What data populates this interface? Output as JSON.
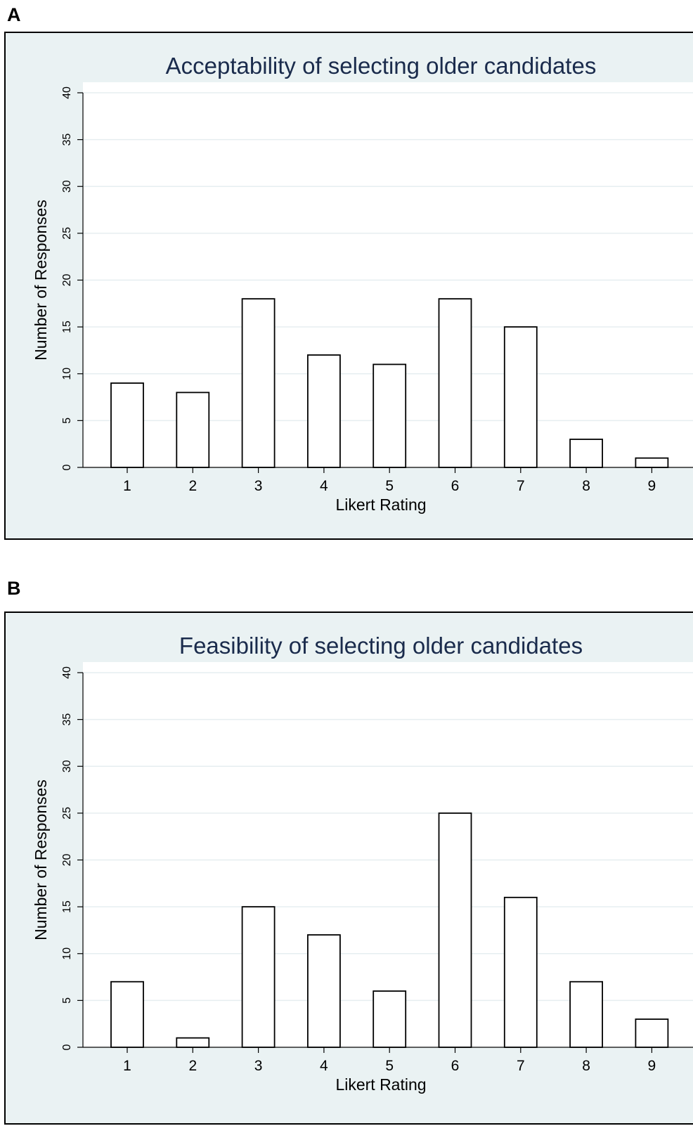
{
  "panels": [
    {
      "letter": "A"
    },
    {
      "letter": "B"
    }
  ],
  "chart_data": [
    {
      "type": "bar",
      "title": "Acceptability of selecting older candidates",
      "xlabel": "Likert Rating",
      "ylabel": "Number of Responses",
      "categories": [
        "1",
        "2",
        "3",
        "4",
        "5",
        "6",
        "7",
        "8",
        "9"
      ],
      "values": [
        9,
        8,
        18,
        12,
        11,
        18,
        15,
        3,
        1
      ],
      "ylim": [
        0,
        40
      ],
      "yticks": [
        "0",
        "5",
        "10",
        "15",
        "20",
        "25",
        "30",
        "35",
        "40"
      ],
      "grid": true,
      "bar_fill": "#ffffff",
      "bar_stroke": "#000000",
      "plot_background": "#ffffff",
      "panel_background": "#eaf2f3",
      "title_color": "#1a2b4c"
    },
    {
      "type": "bar",
      "title": "Feasibility of selecting older candidates",
      "xlabel": "Likert Rating",
      "ylabel": "Number of Responses",
      "categories": [
        "1",
        "2",
        "3",
        "4",
        "5",
        "6",
        "7",
        "8",
        "9"
      ],
      "values": [
        7,
        1,
        15,
        12,
        6,
        25,
        16,
        7,
        3
      ],
      "ylim": [
        0,
        40
      ],
      "yticks": [
        "0",
        "5",
        "10",
        "15",
        "20",
        "25",
        "30",
        "35",
        "40"
      ],
      "grid": true,
      "bar_fill": "#ffffff",
      "bar_stroke": "#000000",
      "plot_background": "#ffffff",
      "panel_background": "#eaf2f3",
      "title_color": "#1a2b4c"
    }
  ]
}
